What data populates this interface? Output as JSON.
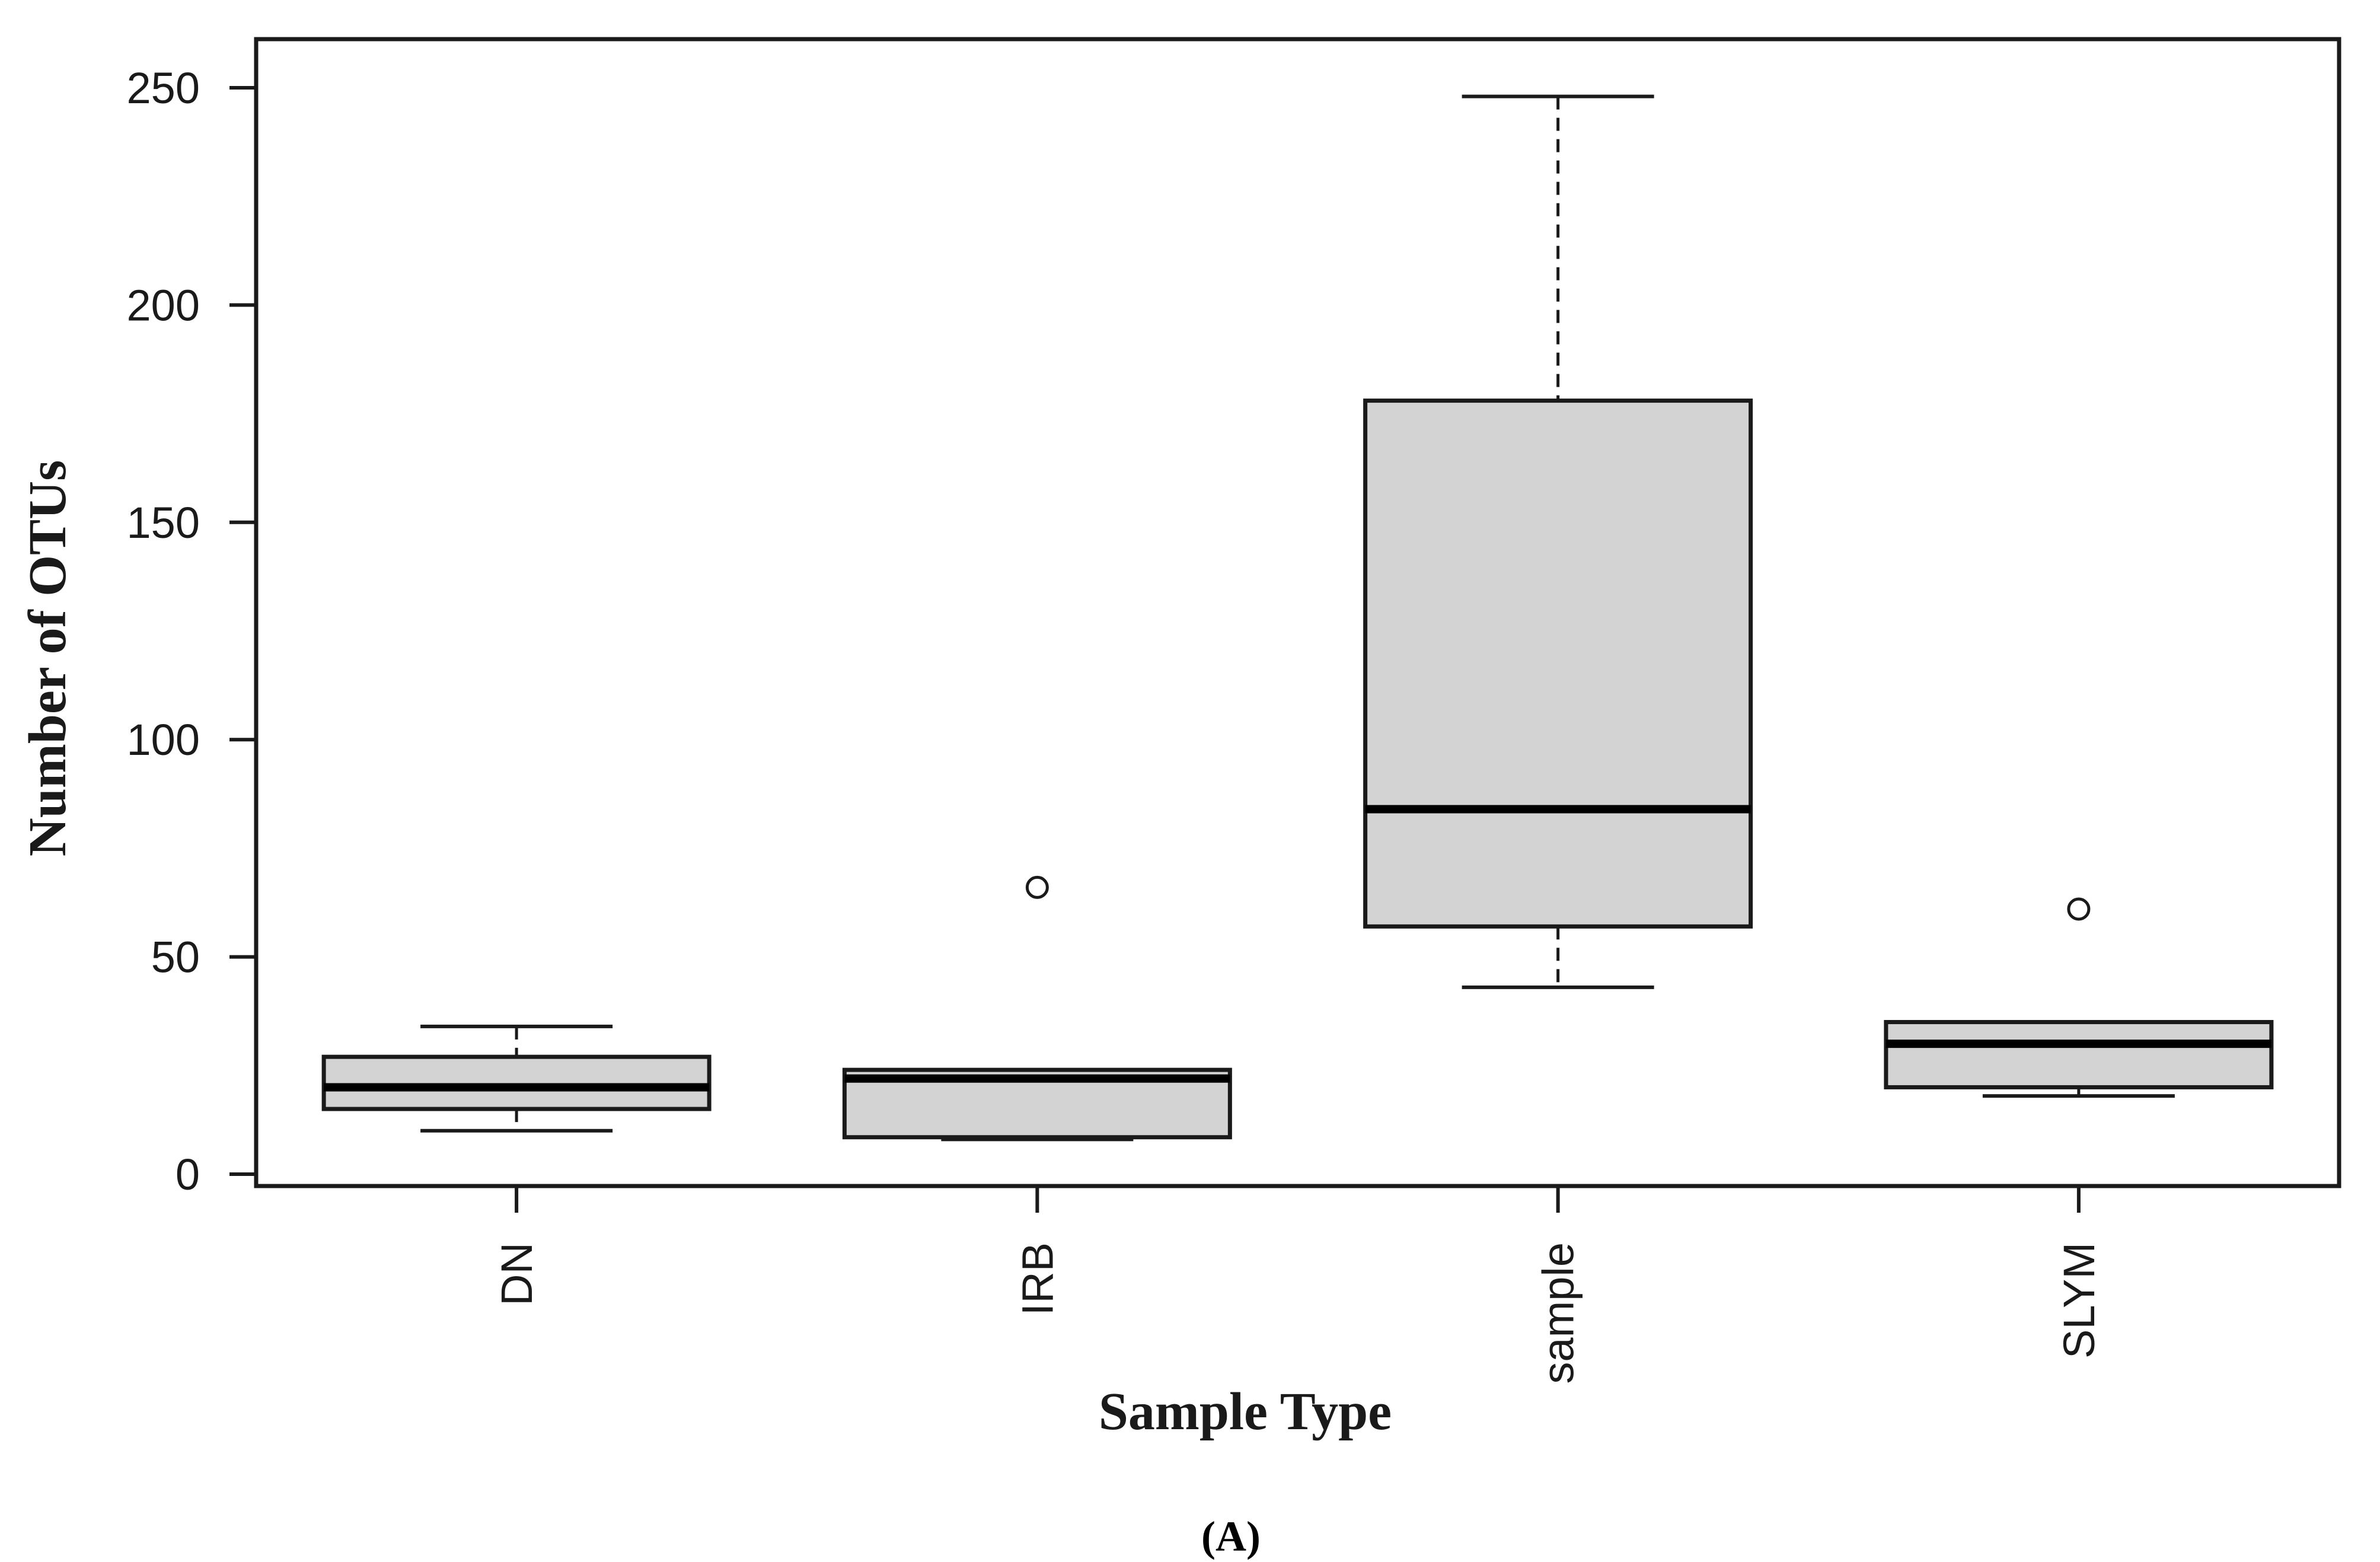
{
  "panel_label": "(A)",
  "chart_data": {
    "type": "boxplot",
    "xlabel": "Sample Type",
    "ylabel": "Number of OTUs",
    "ylim": [
      -2,
      252
    ],
    "yticks": [
      0,
      50,
      100,
      150,
      200,
      250
    ],
    "categories": [
      "DN",
      "IRB",
      "sample",
      "SLYM"
    ],
    "boxes": [
      {
        "category": "DN",
        "min": 10,
        "q1": 15,
        "median": 20,
        "q3": 27,
        "max": 34,
        "outliers": []
      },
      {
        "category": "IRB",
        "min": 8,
        "q1": 8.5,
        "median": 22,
        "q3": 24,
        "max": 24,
        "outliers": [
          66
        ]
      },
      {
        "category": "sample",
        "min": 43,
        "q1": 57,
        "median": 84,
        "q3": 178,
        "max": 248,
        "outliers": []
      },
      {
        "category": "SLYM",
        "min": 18,
        "q1": 20,
        "median": 30,
        "q3": 35,
        "max": 35,
        "outliers": [
          61
        ]
      }
    ],
    "box_fill": "#d3d3d3",
    "line_color": "#1a1a1a",
    "grid": false,
    "legend": "none"
  }
}
